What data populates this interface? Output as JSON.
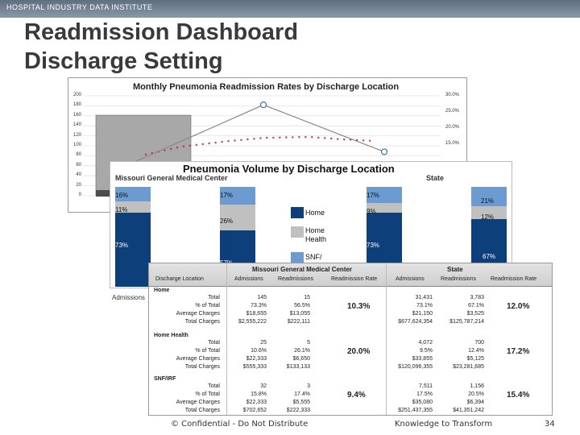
{
  "header": {
    "institute": "HOSPITAL INDUSTRY DATA INSTITUTE"
  },
  "title": {
    "line1": "Readmission Dashboard",
    "line2": "Discharge Setting"
  },
  "rates_chart": {
    "title": "Monthly Pneumonia Readmission Rates by Discharge Location",
    "left_ticks": [
      "200",
      "180",
      "160",
      "140",
      "120",
      "100",
      "80",
      "60",
      "40",
      "20",
      "0"
    ],
    "right_ticks": [
      "30.0%",
      "25.0%",
      "20.0%",
      "15.0%"
    ],
    "line_points": [
      {
        "x": 0,
        "y": 52
      },
      {
        "x": 1,
        "y": 182
      },
      {
        "x": 2,
        "y": 88
      }
    ],
    "ylim": [
      0,
      200
    ]
  },
  "volume_chart": {
    "title": "Pneumonia Volume by Discharge Location",
    "group_left": "Missouri General Medical Center",
    "group_right": "State",
    "legend": [
      {
        "label": "Home",
        "color": "#0d3f7a"
      },
      {
        "label": "Home Health",
        "color": "#c0c0c0"
      },
      {
        "label": "SNF/",
        "color": "#6b9bd1"
      }
    ],
    "stacks": [
      {
        "top_label": "16%",
        "mid_label": "11%",
        "bottom_label": "73%"
      },
      {
        "top_label": "17%",
        "mid_label": "26%",
        "bottom_label": "57%"
      },
      {
        "top_label": "17%",
        "mid_label": "9%",
        "bottom_label": "73%"
      },
      {
        "top_label": "21%",
        "mid_label": "12%",
        "bottom_label": "67%"
      }
    ],
    "admissions_label": "Admissions"
  },
  "table": {
    "group_left": "Missouri General Medical Center",
    "group_right": "State",
    "columns": [
      "Discharge Location",
      "Admissions",
      "Readmissions",
      "Readmission Rate",
      "Admissions",
      "Readmissions",
      "Readmission Rate"
    ],
    "sections": [
      {
        "name": "Home",
        "rows": [
          {
            "label": "Total",
            "a1": "145",
            "r1": "15",
            "a2": "31,431",
            "r2": "3,783"
          },
          {
            "label": "% of Total",
            "a1": "73.3%",
            "r1": "56.5%",
            "a2": "73.1%",
            "r2": "67.1%"
          },
          {
            "label": "Average Charges",
            "a1": "$18,655",
            "r1": "$13,055",
            "a2": "$21,150",
            "r2": "$3,525"
          },
          {
            "label": "Total Charges",
            "a1": "$2,555,222",
            "r1": "$222,111",
            "a2": "$677,624,354",
            "r2": "$125,787,214"
          }
        ],
        "rate1": "10.3%",
        "rate2": "12.0%"
      },
      {
        "name": "Home Health",
        "rows": [
          {
            "label": "Total",
            "a1": "25",
            "r1": "5",
            "a2": "4,072",
            "r2": "700"
          },
          {
            "label": "% of Total",
            "a1": "10.6%",
            "r1": "26.1%",
            "a2": "9.5%",
            "r2": "12.4%"
          },
          {
            "label": "Average Charges",
            "a1": "$22,333",
            "r1": "$6,650",
            "a2": "$33,855",
            "r2": "$5,125"
          },
          {
            "label": "Total Charges",
            "a1": "$555,333",
            "r1": "$133,133",
            "a2": "$120,096,355",
            "r2": "$23,281,685"
          }
        ],
        "rate1": "20.0%",
        "rate2": "17.2%"
      },
      {
        "name": "SNF/IRF",
        "rows": [
          {
            "label": "Total",
            "a1": "32",
            "r1": "3",
            "a2": "7,511",
            "r2": "1,156"
          },
          {
            "label": "% of Total",
            "a1": "15.8%",
            "r1": "17.4%",
            "a2": "17.5%",
            "r2": "20.5%"
          },
          {
            "label": "Average Charges",
            "a1": "$22,333",
            "r1": "$5,555",
            "a2": "$35,080",
            "r2": "$6,394"
          },
          {
            "label": "Total Charges",
            "a1": "$702,652",
            "r1": "$222,333",
            "a2": "$251,437,355",
            "r2": "$41,351,242"
          }
        ],
        "rate1": "9.4%",
        "rate2": "15.4%"
      }
    ]
  },
  "footer": {
    "confidential": "© Confidential - Do Not Distribute",
    "tagline": "Knowledge to Transform",
    "page": "34"
  }
}
